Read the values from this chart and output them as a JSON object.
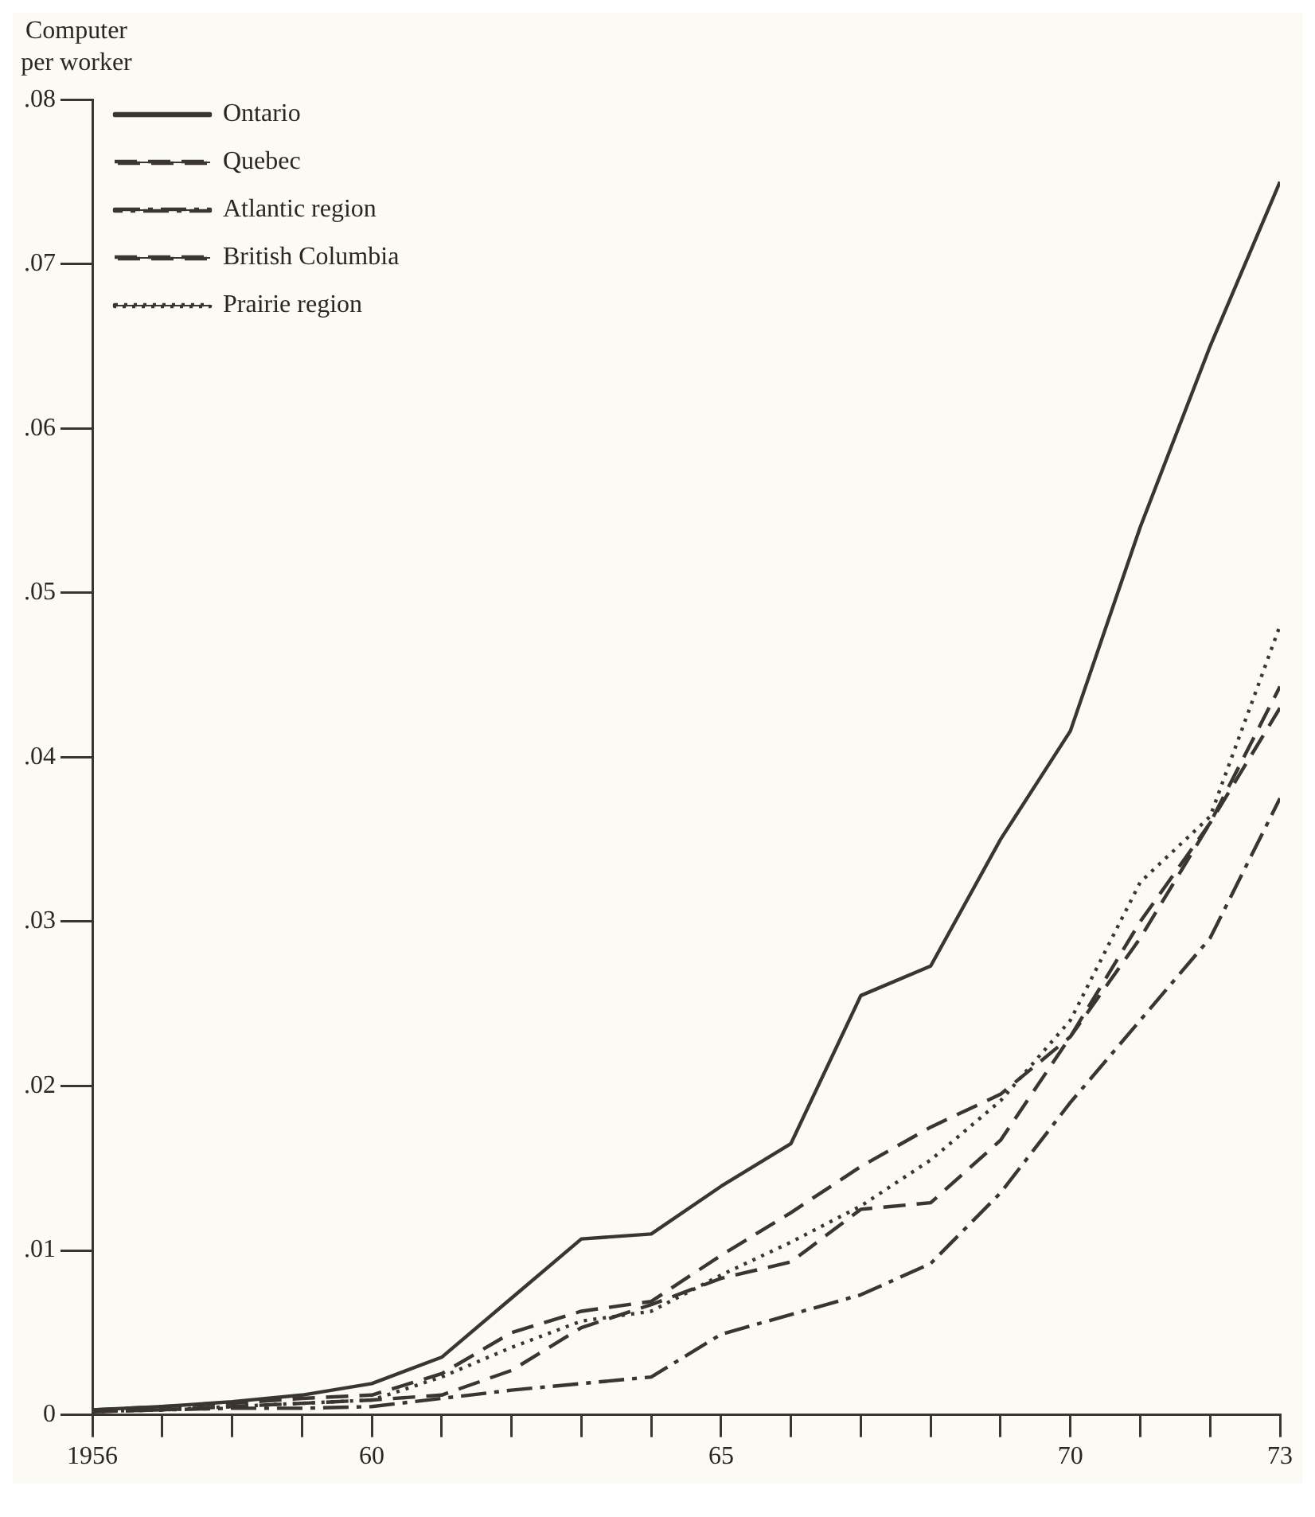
{
  "chart_data": {
    "type": "line",
    "ylabel": "Computer per worker",
    "x": [
      1956,
      1957,
      1958,
      1959,
      1960,
      1961,
      1962,
      1963,
      1964,
      1965,
      1966,
      1967,
      1968,
      1969,
      1970,
      1971,
      1972,
      1973
    ],
    "xlim": [
      1956,
      1973
    ],
    "xticks": [
      1956,
      {
        "value": 1957,
        "label": null
      },
      {
        "value": 1958,
        "label": null
      },
      {
        "value": 1959,
        "label": null
      },
      {
        "value": 1960,
        "label": "60"
      },
      {
        "value": 1961,
        "label": null
      },
      {
        "value": 1962,
        "label": null
      },
      {
        "value": 1963,
        "label": null
      },
      {
        "value": 1964,
        "label": null
      },
      {
        "value": 1965,
        "label": "65"
      },
      {
        "value": 1966,
        "label": null
      },
      {
        "value": 1967,
        "label": null
      },
      {
        "value": 1968,
        "label": null
      },
      {
        "value": 1969,
        "label": null
      },
      {
        "value": 1970,
        "label": "70"
      },
      {
        "value": 1971,
        "label": null
      },
      {
        "value": 1972,
        "label": null
      },
      {
        "value": 1973,
        "label": "73"
      }
    ],
    "ylim": [
      0,
      0.08
    ],
    "yticks": [
      0,
      {
        "value": 0.01,
        "label": ".01"
      },
      {
        "value": 0.02,
        "label": ".02"
      },
      {
        "value": 0.03,
        "label": ".03"
      },
      {
        "value": 0.04,
        "label": ".04"
      },
      {
        "value": 0.05,
        "label": ".05"
      },
      {
        "value": 0.06,
        "label": ".06"
      },
      {
        "value": 0.07,
        "label": ".07"
      },
      {
        "value": 0.08,
        "label": ".08"
      }
    ],
    "grid": false,
    "legend": "top left",
    "marker": "none",
    "series": [
      {
        "name": "Ontario",
        "color": "#3a3530",
        "line_style": "solid",
        "values": [
          0.0003,
          0.0005,
          0.0008,
          0.0012,
          0.0019,
          0.0035,
          0.0071,
          0.0107,
          0.011,
          0.0139,
          0.0165,
          0.0255,
          0.0273,
          0.035,
          0.0416,
          0.054,
          0.065,
          0.075
        ]
      },
      {
        "name": "Quebec",
        "color": "#3a3530",
        "line_style": "dashed",
        "values": [
          0.0003,
          0.0005,
          0.0007,
          0.001,
          0.0012,
          0.0025,
          0.005,
          0.0063,
          0.0069,
          0.0097,
          0.0123,
          0.0151,
          0.0175,
          0.0195,
          0.023,
          0.029,
          0.036,
          0.0443
        ]
      },
      {
        "name": "Atlantic region",
        "color": "#3a3530",
        "line_style": "dashdot",
        "values": [
          0.0002,
          0.0003,
          0.0004,
          0.0004,
          0.0005,
          0.001,
          0.0015,
          0.0019,
          0.0023,
          0.0049,
          0.0061,
          0.0073,
          0.0092,
          0.0135,
          0.019,
          0.024,
          0.029,
          0.0375
        ]
      },
      {
        "name": "British Columbia",
        "color": "#3a3530",
        "line_style": "dashed",
        "values": [
          0.0002,
          0.0003,
          0.0005,
          0.0007,
          0.0009,
          0.0012,
          0.0027,
          0.0053,
          0.0067,
          0.0083,
          0.0093,
          0.0125,
          0.0129,
          0.0167,
          0.023,
          0.03,
          0.036,
          0.043
        ]
      },
      {
        "name": "Prairie region",
        "color": "#3a3530",
        "line_style": "dotted",
        "values": [
          0.0002,
          0.0003,
          0.0005,
          0.0007,
          0.0009,
          0.0023,
          0.0041,
          0.0057,
          0.0063,
          0.0085,
          0.0105,
          0.0127,
          0.0155,
          0.0191,
          0.024,
          0.0324,
          0.0364,
          0.048
        ]
      }
    ]
  }
}
